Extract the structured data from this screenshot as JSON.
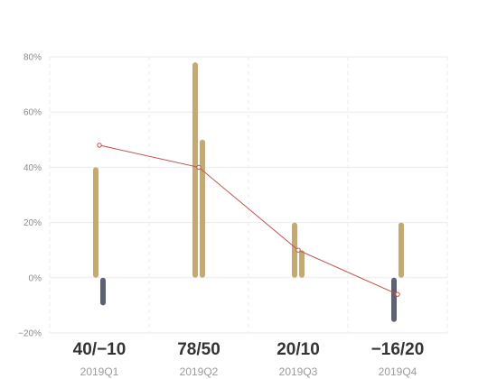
{
  "chart_data": {
    "type": "bar",
    "categories": [
      "2019Q1",
      "2019Q2",
      "2019Q3",
      "2019Q4"
    ],
    "category_labels": [
      "40/−10",
      "78/50",
      "20/10",
      "−16/20"
    ],
    "ylim": [
      -20,
      80
    ],
    "yticks": [
      -20,
      0,
      20,
      40,
      60,
      80
    ],
    "ytick_suffix": "%",
    "grid": true,
    "series": [
      {
        "values": [
          40,
          78,
          20,
          -16
        ]
      },
      {
        "values": [
          -10,
          50,
          10,
          20
        ]
      }
    ],
    "line_series": {
      "values": [
        48,
        40,
        10,
        -6
      ]
    },
    "colors": {
      "positive": "#c4aa72",
      "negative": "#5c6272",
      "line": "#c0504d",
      "grid": "#ebebeb"
    }
  }
}
